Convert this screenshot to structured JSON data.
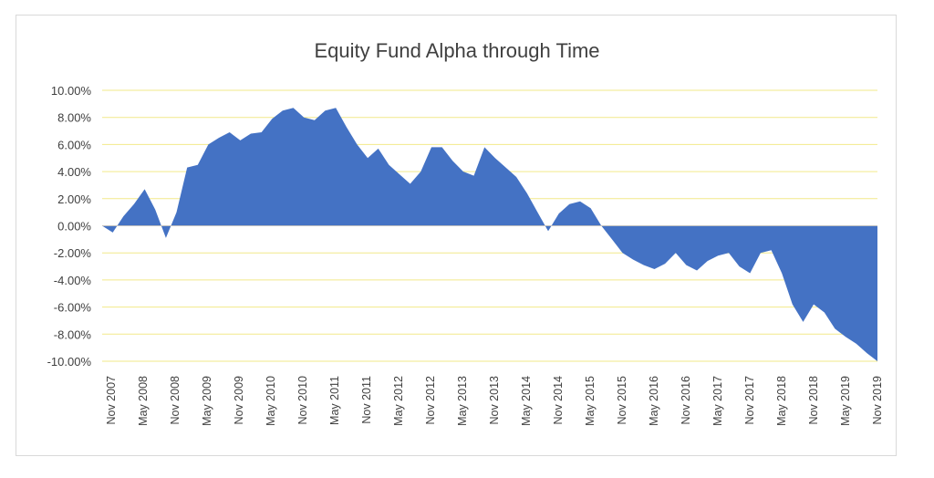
{
  "chart_data": {
    "type": "area",
    "title": "Equity Fund Alpha through Time",
    "xlabel": "",
    "ylabel": "",
    "ylim": [
      -0.1,
      0.1
    ],
    "y_ticks": [
      0.1,
      0.08,
      0.06,
      0.04,
      0.02,
      0.0,
      -0.02,
      -0.04,
      -0.06,
      -0.08,
      -0.1
    ],
    "y_tick_labels": [
      "10.00%",
      "8.00%",
      "6.00%",
      "4.00%",
      "2.00%",
      "0.00%",
      "-2.00%",
      "-4.00%",
      "-6.00%",
      "-8.00%",
      "-10.00%"
    ],
    "x_tick_labels": [
      "Nov 2007",
      "May 2008",
      "Nov 2008",
      "May 2009",
      "Nov 2009",
      "May 2010",
      "Nov 2010",
      "May 2011",
      "Nov 2011",
      "May 2012",
      "Nov 2012",
      "May 2013",
      "Nov 2013",
      "May 2014",
      "Nov 2014",
      "May 2015",
      "Nov 2015",
      "May 2016",
      "Nov 2016",
      "May 2017",
      "Nov 2017",
      "May 2018",
      "Nov 2018",
      "May 2019",
      "Nov 2019"
    ],
    "grid": true,
    "gridline_color": "#f2e98a",
    "fill_color": "#4472c4",
    "series": [
      {
        "x": [
          "2007-11",
          "2008-01",
          "2008-03",
          "2008-05",
          "2008-07",
          "2008-09",
          "2008-11",
          "2009-01",
          "2009-03",
          "2009-05",
          "2009-07",
          "2009-09",
          "2009-11",
          "2010-01",
          "2010-03",
          "2010-05",
          "2010-07",
          "2010-09",
          "2010-11",
          "2011-01",
          "2011-03",
          "2011-05",
          "2011-07",
          "2011-09",
          "2011-11",
          "2012-01",
          "2012-03",
          "2012-05",
          "2012-07",
          "2012-09",
          "2012-11",
          "2013-01",
          "2013-03",
          "2013-05",
          "2013-07",
          "2013-09",
          "2013-11",
          "2014-01",
          "2014-03",
          "2014-05",
          "2014-07",
          "2014-09",
          "2014-11",
          "2015-01",
          "2015-03",
          "2015-05",
          "2015-07",
          "2015-09",
          "2015-11",
          "2016-01",
          "2016-03",
          "2016-05",
          "2016-07",
          "2016-09",
          "2016-11",
          "2017-01",
          "2017-03",
          "2017-05",
          "2017-07",
          "2017-09",
          "2017-11",
          "2018-01",
          "2018-03",
          "2018-05",
          "2018-07",
          "2018-09",
          "2018-11",
          "2019-01",
          "2019-03",
          "2019-05",
          "2019-07",
          "2019-09",
          "2019-11",
          "2020-01"
        ],
        "values": [
          0.0,
          -0.005,
          0.007,
          0.016,
          0.027,
          0.012,
          -0.009,
          0.01,
          0.043,
          0.045,
          0.06,
          0.065,
          0.069,
          0.063,
          0.068,
          0.069,
          0.079,
          0.085,
          0.087,
          0.08,
          0.078,
          0.085,
          0.087,
          0.073,
          0.06,
          0.05,
          0.057,
          0.045,
          0.038,
          0.031,
          0.04,
          0.058,
          0.058,
          0.048,
          0.04,
          0.037,
          0.058,
          0.05,
          0.043,
          0.036,
          0.024,
          0.01,
          -0.004,
          0.009,
          0.016,
          0.018,
          0.013,
          0.0,
          -0.01,
          -0.02,
          -0.025,
          -0.029,
          -0.032,
          -0.028,
          -0.02,
          -0.029,
          -0.033,
          -0.026,
          -0.022,
          -0.02,
          -0.03,
          -0.035,
          -0.02,
          -0.018,
          -0.035,
          -0.058,
          -0.071,
          -0.058,
          -0.064,
          -0.076,
          -0.082,
          -0.087,
          -0.094,
          -0.1
        ]
      }
    ]
  }
}
